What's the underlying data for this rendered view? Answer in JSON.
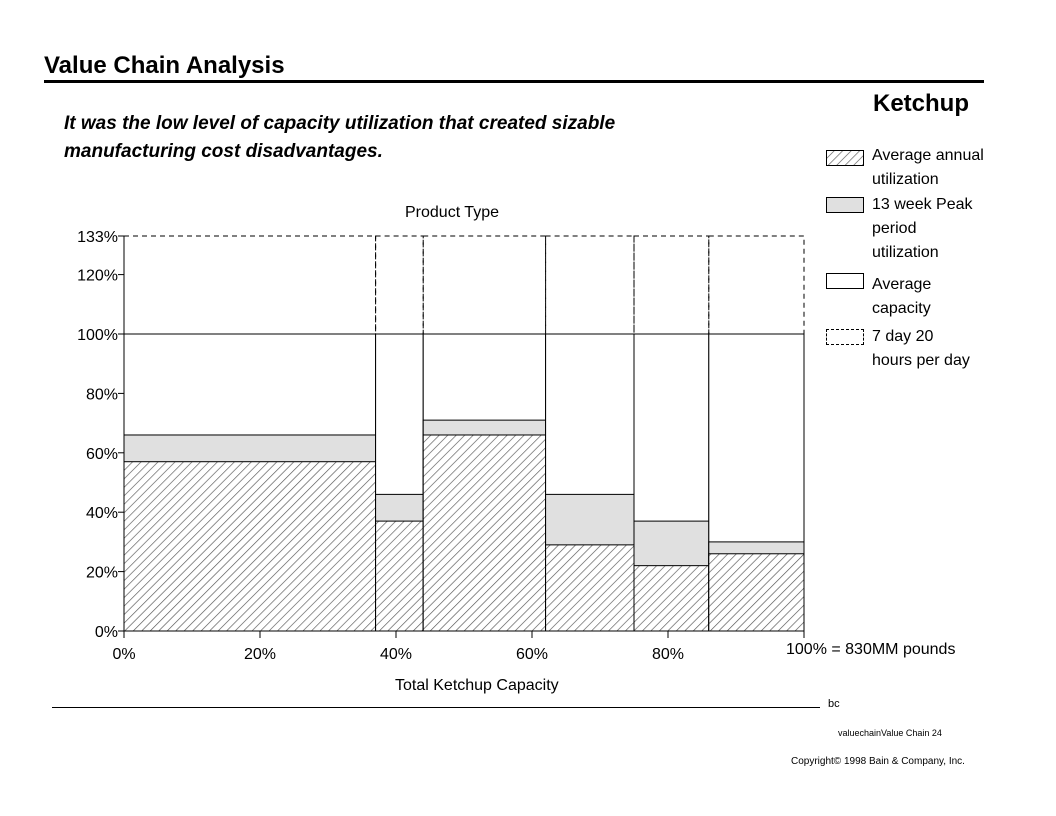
{
  "header": {
    "title": "Value Chain Analysis",
    "product": "Ketchup",
    "subtitle": "It was the low level of capacity utilization that created sizable manufacturing cost disadvantages."
  },
  "chart_data": {
    "type": "bar",
    "subtype": "variable-width (marimekko) bars",
    "top_label": "Product Type",
    "xlabel": "Total Ketchup Capacity",
    "xlim": [
      0,
      100
    ],
    "ylim": [
      0,
      133
    ],
    "x_ticks": [
      "0%",
      "20%",
      "40%",
      "60%",
      "80%"
    ],
    "x_tick_values": [
      0,
      20,
      40,
      60,
      80
    ],
    "y_ticks": [
      "0%",
      "20%",
      "40%",
      "60%",
      "80%",
      "100%",
      "120%",
      "133%"
    ],
    "y_tick_values": [
      0,
      20,
      40,
      60,
      80,
      100,
      120,
      133
    ],
    "capacity_note": "100% = 830MM pounds",
    "segments": [
      {
        "x_start": 0,
        "x_end": 37,
        "average_annual_utilization": 57,
        "peak_13_week_utilization": 66,
        "average_capacity": 100,
        "max_capacity_7day_20hr": 133
      },
      {
        "x_start": 37,
        "x_end": 44,
        "average_annual_utilization": 37,
        "peak_13_week_utilization": 46,
        "average_capacity": 100,
        "max_capacity_7day_20hr": 133
      },
      {
        "x_start": 44,
        "x_end": 62,
        "average_annual_utilization": 66,
        "peak_13_week_utilization": 71,
        "average_capacity": 100,
        "max_capacity_7day_20hr": 133
      },
      {
        "x_start": 62,
        "x_end": 75,
        "average_annual_utilization": 29,
        "peak_13_week_utilization": 46,
        "average_capacity": 100,
        "max_capacity_7day_20hr": 133
      },
      {
        "x_start": 75,
        "x_end": 86,
        "average_annual_utilization": 22,
        "peak_13_week_utilization": 37,
        "average_capacity": 100,
        "max_capacity_7day_20hr": 133
      },
      {
        "x_start": 86,
        "x_end": 100,
        "average_annual_utilization": 26,
        "peak_13_week_utilization": 30,
        "average_capacity": 100,
        "max_capacity_7day_20hr": 133
      }
    ],
    "legend": [
      {
        "key": "annual",
        "label": "Average annual\nutilization",
        "style": "hatched"
      },
      {
        "key": "peak",
        "label": "13 week Peak\nperiod\nutilization",
        "style": "light-gray"
      },
      {
        "key": "capacity",
        "label": "Average\ncapacity",
        "style": "white-solid"
      },
      {
        "key": "max",
        "label": "7 day 20\nhours per day",
        "style": "dashed"
      }
    ],
    "colors": {
      "peak_fill": "#e0e0e0",
      "hatch": "#555555",
      "outline": "#000000"
    }
  },
  "footer": {
    "bc": "bc",
    "file_label": "valuechainValue Chain   24",
    "copyright": "Copyright© 1998 Bain & Company, Inc."
  }
}
